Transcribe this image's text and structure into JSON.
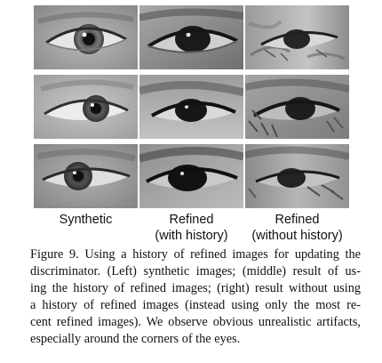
{
  "figure": {
    "columns": [
      {
        "label_line1": "Synthetic",
        "label_line2": ""
      },
      {
        "label_line1": "Refined",
        "label_line2": "(with history)"
      },
      {
        "label_line1": "Refined",
        "label_line2": "(without history)"
      }
    ],
    "rows": [
      {
        "cells": [
          {
            "description_key": "synthetic-eye-1"
          },
          {
            "description_key": "refined-with-history-eye-1"
          },
          {
            "description_key": "refined-without-history-eye-1"
          }
        ]
      },
      {
        "cells": [
          {
            "description_key": "synthetic-eye-2"
          },
          {
            "description_key": "refined-with-history-eye-2"
          },
          {
            "description_key": "refined-without-history-eye-2"
          }
        ]
      },
      {
        "cells": [
          {
            "description_key": "synthetic-eye-3"
          },
          {
            "description_key": "refined-with-history-eye-3"
          },
          {
            "description_key": "refined-without-history-eye-3"
          }
        ]
      }
    ]
  },
  "caption": {
    "lines": [
      "Figure 9. Using a history of refined images for updating the",
      "discriminator.  (Left) synthetic images; (middle) result of us-",
      "ing the history of refined images; (right) result without using",
      "a history of refined images (instead using only the most re-",
      "cent refined images). We observe obvious unrealistic artifacts,",
      "especially around the corners of the eyes."
    ]
  },
  "colors": {
    "text": "#111111",
    "background": "#ffffff"
  }
}
